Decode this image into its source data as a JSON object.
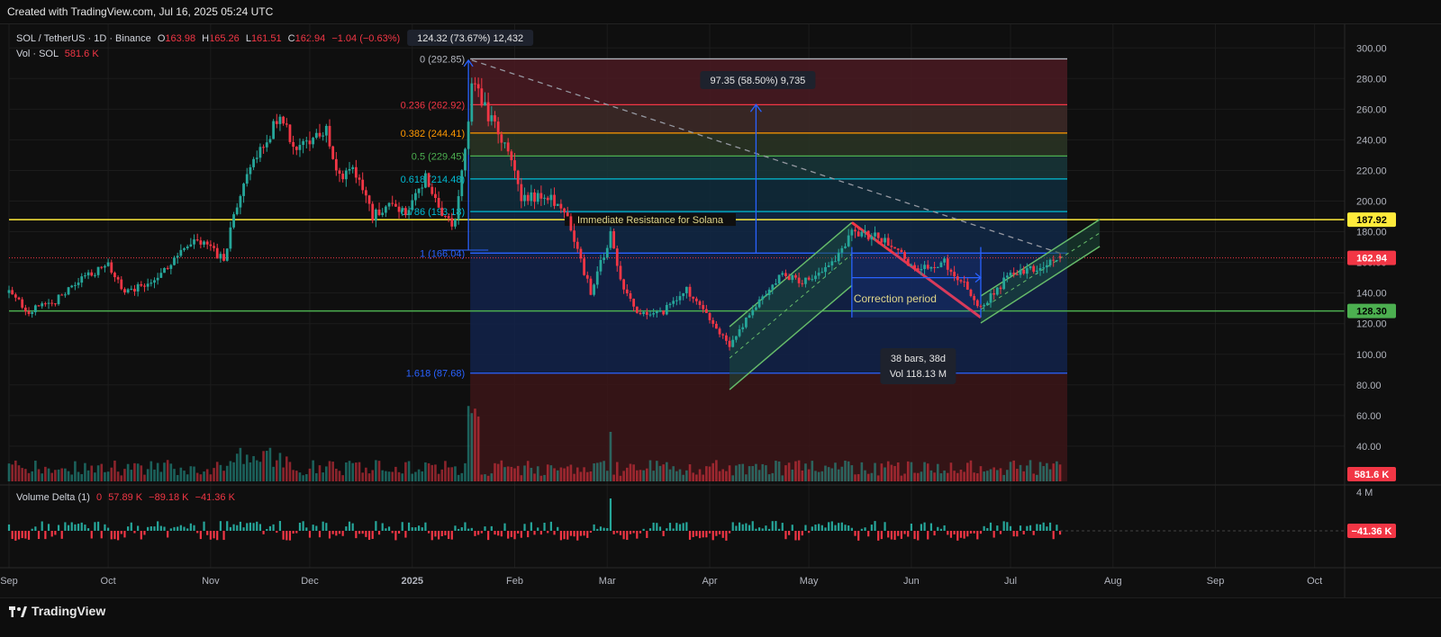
{
  "header": {
    "text": "Created with TradingView.com, Jul 16, 2025 05:24 UTC"
  },
  "legend": {
    "symbol": "SOL / TetherUS · 1D · Binance",
    "o_label": "O",
    "o": "163.98",
    "h_label": "H",
    "h": "165.26",
    "l_label": "L",
    "l": "161.51",
    "c_label": "C",
    "c": "162.94",
    "chg": "−1.04 (−0.63%)",
    "vol_label": "Vol · SOL",
    "vol": "581.6 K"
  },
  "delta_legend": {
    "name": "Volume Delta (1)",
    "v1": "0",
    "v2": "57.89 K",
    "v3": "−89.18 K",
    "v4": "−41.36 K"
  },
  "brand": {
    "name": "TradingView"
  },
  "colors": {
    "up": "#26a69a",
    "down": "#f23645",
    "resistance": "#ffeb3b",
    "support": "#4caf50",
    "accent": "#2962ff",
    "price_tag": "#f23645"
  },
  "chart_data": {
    "type": "candlestick",
    "symbol": "SOL / TetherUS",
    "interval": "1D",
    "exchange": "Binance",
    "ylim": [
      0,
      300
    ],
    "y_ticks": [
      "300.00",
      "280.00",
      "260.00",
      "240.00",
      "220.00",
      "200.00",
      "180.00",
      "160.00",
      "140.00",
      "120.00",
      "100.00",
      "80.00",
      "60.00",
      "40.00"
    ],
    "y_ticks_values": [
      300,
      280,
      260,
      240,
      220,
      200,
      180,
      160,
      140,
      120,
      100,
      80,
      60,
      40
    ],
    "x_ticks": [
      "Sep",
      "Oct",
      "Nov",
      "Dec",
      "2025",
      "Feb",
      "Mar",
      "Apr",
      "May",
      "Jun",
      "Jul",
      "Aug",
      "Sep",
      "Oct"
    ],
    "current_price": {
      "value": 162.94,
      "label": "162.94"
    },
    "resistance": {
      "value": 187.92,
      "label": "187.92",
      "annotation": "Immediate Resistance for Solana"
    },
    "support": {
      "value": 128.3,
      "label": "128.30"
    },
    "volume_tag": "581.6 K",
    "delta_axis_top": "4 M",
    "delta_tag": "−41.36 K",
    "fib_levels": [
      {
        "label": "0 (292.85)",
        "value": 292.85,
        "color": "#b2b5be"
      },
      {
        "label": "0.236 (262.92)",
        "value": 262.92,
        "color": "#f23645"
      },
      {
        "label": "0.382 (244.41)",
        "value": 244.41,
        "color": "#ff9800"
      },
      {
        "label": "0.5 (229.45)",
        "value": 229.45,
        "color": "#4caf50"
      },
      {
        "label": "0.618 (214.48)",
        "value": 214.48,
        "color": "#00bcd4"
      },
      {
        "label": "0.786 (193.18)",
        "value": 193.18,
        "color": "#00bcd4"
      },
      {
        "label": "1 (166.04)",
        "value": 166.04,
        "color": "#2962ff"
      },
      {
        "label": "1.618 (87.68)",
        "value": 87.68,
        "color": "#2962ff"
      }
    ],
    "annotations": {
      "measure_top": "124.32 (73.67%) 12,432",
      "measure_mid": "97.35 (58.50%) 9,735",
      "correction": "Correction period",
      "bars_line1": "38 bars, 38d",
      "bars_line2": "Vol 118.13 M"
    },
    "price_path": [
      [
        "2024-09-01",
        140
      ],
      [
        "2024-09-07",
        128
      ],
      [
        "2024-09-15",
        135
      ],
      [
        "2024-09-25",
        152
      ],
      [
        "2024-10-01",
        158
      ],
      [
        "2024-10-06",
        140
      ],
      [
        "2024-10-12",
        145
      ],
      [
        "2024-10-20",
        160
      ],
      [
        "2024-10-28",
        175
      ],
      [
        "2024-11-01",
        168
      ],
      [
        "2024-11-05",
        162
      ],
      [
        "2024-11-11",
        215
      ],
      [
        "2024-11-18",
        240
      ],
      [
        "2024-11-22",
        258
      ],
      [
        "2024-11-26",
        235
      ],
      [
        "2024-12-01",
        240
      ],
      [
        "2024-12-06",
        245
      ],
      [
        "2024-12-10",
        215
      ],
      [
        "2024-12-14",
        225
      ],
      [
        "2024-12-20",
        190
      ],
      [
        "2024-12-25",
        198
      ],
      [
        "2024-12-30",
        192
      ],
      [
        "2025-01-05",
        215
      ],
      [
        "2025-01-10",
        188
      ],
      [
        "2025-01-14",
        185
      ],
      [
        "2025-01-18",
        255
      ],
      [
        "2025-01-19",
        280
      ],
      [
        "2025-01-24",
        255
      ],
      [
        "2025-01-30",
        235
      ],
      [
        "2025-02-03",
        200
      ],
      [
        "2025-02-10",
        205
      ],
      [
        "2025-02-17",
        190
      ],
      [
        "2025-02-24",
        140
      ],
      [
        "2025-03-02",
        178
      ],
      [
        "2025-03-06",
        142
      ],
      [
        "2025-03-11",
        125
      ],
      [
        "2025-03-18",
        128
      ],
      [
        "2025-03-25",
        142
      ],
      [
        "2025-03-31",
        125
      ],
      [
        "2025-04-07",
        105
      ],
      [
        "2025-04-15",
        132
      ],
      [
        "2025-04-23",
        152
      ],
      [
        "2025-05-01",
        147
      ],
      [
        "2025-05-08",
        160
      ],
      [
        "2025-05-14",
        180
      ],
      [
        "2025-05-23",
        176
      ],
      [
        "2025-06-02",
        156
      ],
      [
        "2025-06-11",
        160
      ],
      [
        "2025-06-17",
        145
      ],
      [
        "2025-06-22",
        130
      ],
      [
        "2025-06-30",
        150
      ],
      [
        "2025-07-07",
        155
      ],
      [
        "2025-07-15",
        163
      ]
    ]
  }
}
